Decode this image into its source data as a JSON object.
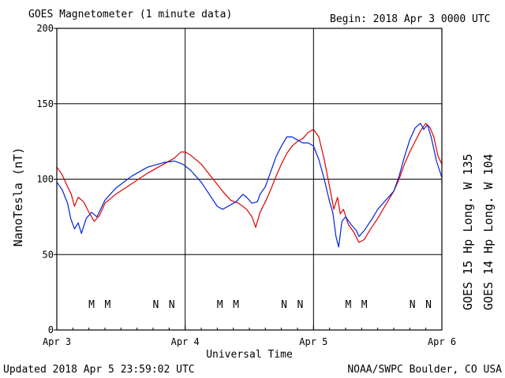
{
  "header": {
    "title": "GOES Magnetometer (1 minute data)",
    "begin": "Begin:  2018 Apr 3 0000 UTC"
  },
  "footer": {
    "updated": "Updated 2018 Apr  5 23:59:02 UTC",
    "credit": "NOAA/SWPC Boulder, CO USA"
  },
  "legend": {
    "goes15": "GOES 15 Hp  Long. W 135",
    "goes14": "GOES 14 Hp  Long. W 104"
  },
  "colors": {
    "goes15": "#dd0000",
    "goes14": "#0022dd",
    "axis": "#000000"
  },
  "chart_data": {
    "type": "line",
    "title": "GOES Magnetometer (1 minute data)",
    "xlabel": "Universal Time",
    "ylabel": "NanoTesla (nT)",
    "xlim": [
      0,
      72
    ],
    "x_unit": "hours since 2018 Apr 3 0000 UTC",
    "ylim": [
      0,
      200
    ],
    "y_ticks": [
      0,
      50,
      100,
      150,
      200
    ],
    "x_ticks": [
      {
        "x": 0,
        "label": "Apr 3"
      },
      {
        "x": 24,
        "label": "Apr 4"
      },
      {
        "x": 48,
        "label": "Apr 5"
      },
      {
        "x": 72,
        "label": "Apr 6"
      }
    ],
    "grid": true,
    "series": [
      {
        "name": "GOES 15 Hp  Long. W 135",
        "color": "#dd0000",
        "points": [
          [
            0,
            108
          ],
          [
            1,
            103
          ],
          [
            2,
            95
          ],
          [
            2.7,
            90
          ],
          [
            3.3,
            82
          ],
          [
            4,
            88
          ],
          [
            5,
            85
          ],
          [
            6,
            78
          ],
          [
            7,
            72
          ],
          [
            8,
            76
          ],
          [
            9,
            84
          ],
          [
            11,
            90
          ],
          [
            14,
            97
          ],
          [
            17,
            104
          ],
          [
            20,
            110
          ],
          [
            22,
            114
          ],
          [
            23.2,
            118
          ],
          [
            24,
            118
          ],
          [
            25,
            116
          ],
          [
            27,
            110
          ],
          [
            29,
            101
          ],
          [
            31,
            92
          ],
          [
            32.5,
            86
          ],
          [
            34,
            84
          ],
          [
            35.5,
            80
          ],
          [
            36.5,
            75
          ],
          [
            37.2,
            68
          ],
          [
            38,
            78
          ],
          [
            39,
            85
          ],
          [
            40,
            93
          ],
          [
            41,
            102
          ],
          [
            42,
            110
          ],
          [
            43,
            117
          ],
          [
            44,
            122
          ],
          [
            45,
            125
          ],
          [
            46,
            127
          ],
          [
            47,
            131
          ],
          [
            48,
            133
          ],
          [
            49,
            128
          ],
          [
            50,
            113
          ],
          [
            51,
            95
          ],
          [
            51.8,
            80
          ],
          [
            52.5,
            88
          ],
          [
            53,
            77
          ],
          [
            53.6,
            80
          ],
          [
            54.5,
            70
          ],
          [
            55.5,
            65
          ],
          [
            56.5,
            58
          ],
          [
            57.5,
            60
          ],
          [
            58.5,
            66
          ],
          [
            60,
            74
          ],
          [
            61,
            80
          ],
          [
            62,
            86
          ],
          [
            63,
            92
          ],
          [
            64,
            100
          ],
          [
            65,
            110
          ],
          [
            66,
            118
          ],
          [
            67,
            125
          ],
          [
            68,
            132
          ],
          [
            69,
            137
          ],
          [
            69.8,
            134
          ],
          [
            70.5,
            128
          ],
          [
            71.3,
            115
          ],
          [
            72,
            110
          ]
        ]
      },
      {
        "name": "GOES 14 Hp  Long. W 104",
        "color": "#0022dd",
        "points": [
          [
            0,
            98
          ],
          [
            1,
            93
          ],
          [
            2,
            84
          ],
          [
            2.6,
            74
          ],
          [
            3.3,
            67
          ],
          [
            4,
            71
          ],
          [
            4.6,
            64
          ],
          [
            5.5,
            74
          ],
          [
            6.5,
            78
          ],
          [
            7.5,
            75
          ],
          [
            9,
            86
          ],
          [
            11,
            94
          ],
          [
            14,
            102
          ],
          [
            17,
            108
          ],
          [
            20,
            111
          ],
          [
            22,
            112
          ],
          [
            23.5,
            110
          ],
          [
            25,
            106
          ],
          [
            27,
            98
          ],
          [
            28.5,
            90
          ],
          [
            30,
            82
          ],
          [
            31,
            80
          ],
          [
            32,
            82
          ],
          [
            33.5,
            85
          ],
          [
            34.8,
            90
          ],
          [
            35.5,
            88
          ],
          [
            36.5,
            84
          ],
          [
            37.5,
            85
          ],
          [
            38,
            90
          ],
          [
            39,
            95
          ],
          [
            40,
            105
          ],
          [
            41,
            115
          ],
          [
            42,
            122
          ],
          [
            43,
            128
          ],
          [
            44,
            128
          ],
          [
            45,
            126
          ],
          [
            46,
            124
          ],
          [
            47,
            124
          ],
          [
            48,
            122
          ],
          [
            49,
            113
          ],
          [
            50,
            100
          ],
          [
            51,
            85
          ],
          [
            51.6,
            78
          ],
          [
            52.2,
            62
          ],
          [
            52.7,
            55
          ],
          [
            53.3,
            72
          ],
          [
            54,
            75
          ],
          [
            55,
            70
          ],
          [
            56,
            66
          ],
          [
            56.5,
            62
          ],
          [
            57.5,
            66
          ],
          [
            59,
            74
          ],
          [
            60,
            80
          ],
          [
            61,
            84
          ],
          [
            63,
            92
          ],
          [
            64,
            102
          ],
          [
            65,
            115
          ],
          [
            66,
            126
          ],
          [
            67,
            134
          ],
          [
            68,
            137
          ],
          [
            68.6,
            133
          ],
          [
            69.3,
            136
          ],
          [
            70,
            128
          ],
          [
            71,
            112
          ],
          [
            72,
            101
          ]
        ]
      }
    ],
    "event_markers": [
      {
        "label": "M",
        "x": 6.5,
        "color": "#0022dd"
      },
      {
        "label": "M",
        "x": 9.5,
        "color": "#dd0000"
      },
      {
        "label": "N",
        "x": 18.5,
        "color": "#0022dd"
      },
      {
        "label": "N",
        "x": 21.5,
        "color": "#dd0000"
      },
      {
        "label": "M",
        "x": 30.5,
        "color": "#0022dd"
      },
      {
        "label": "M",
        "x": 33.5,
        "color": "#dd0000"
      },
      {
        "label": "N",
        "x": 42.5,
        "color": "#0022dd"
      },
      {
        "label": "N",
        "x": 45.5,
        "color": "#dd0000"
      },
      {
        "label": "M",
        "x": 54.5,
        "color": "#0022dd"
      },
      {
        "label": "M",
        "x": 57.5,
        "color": "#dd0000"
      },
      {
        "label": "N",
        "x": 66.5,
        "color": "#0022dd"
      },
      {
        "label": "N",
        "x": 69.5,
        "color": "#dd0000"
      }
    ]
  }
}
